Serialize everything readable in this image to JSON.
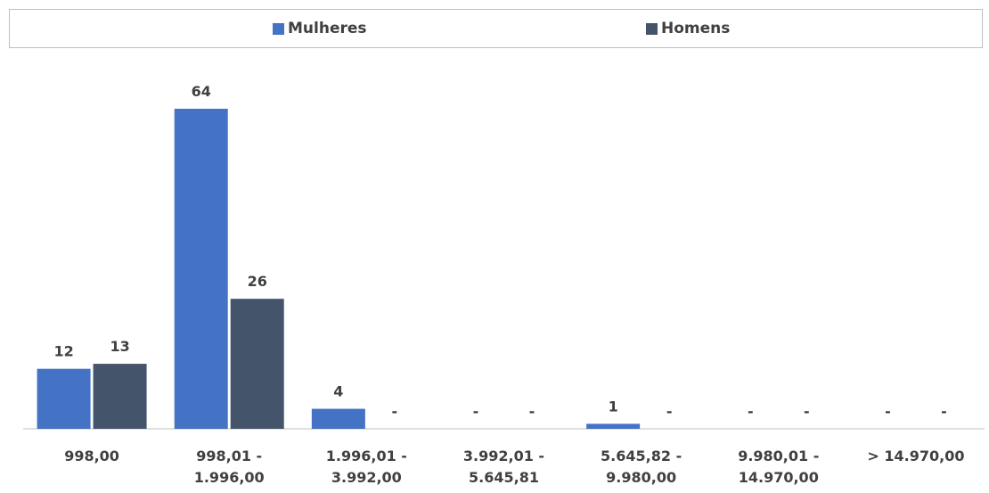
{
  "chart_data": {
    "type": "bar",
    "categories": [
      "998,00",
      "998,01 - 1.996,00",
      "1.996,01 - 3.992,00",
      "3.992,01 - 5.645,81",
      "5.645,82 - 9.980,00",
      "9.980,01 - 14.970,00",
      "> 14.970,00"
    ],
    "series": [
      {
        "name": "Mulheres",
        "color": "#4472c4",
        "values": [
          12,
          64,
          4,
          0,
          1,
          0,
          0
        ],
        "value_labels": [
          "12",
          "64",
          "4",
          "-",
          "1",
          "-",
          "-"
        ]
      },
      {
        "name": "Homens",
        "color": "#44546a",
        "values": [
          13,
          26,
          0,
          0,
          0,
          0,
          0
        ],
        "value_labels": [
          "13",
          "26",
          "-",
          "-",
          "-",
          "-",
          "-"
        ]
      }
    ],
    "legend": "top"
  }
}
